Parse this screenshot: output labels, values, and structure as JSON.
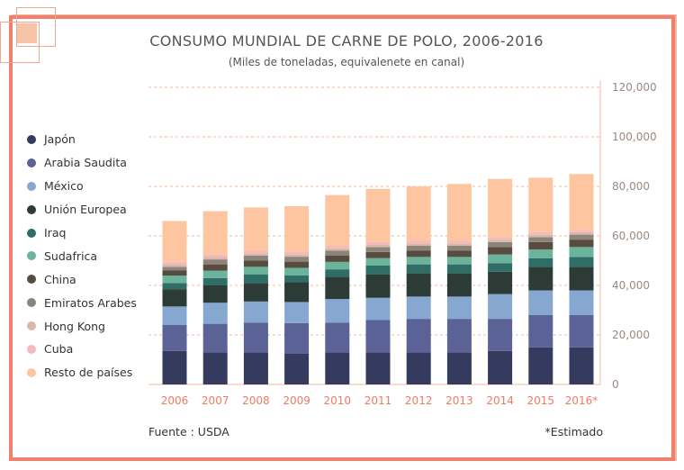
{
  "title": "CONSUMO MUNDIAL DE CARNE DE POLO, 2006-2016",
  "subtitle": "(Miles de toneladas, equivalenete en canal)",
  "footer": {
    "source": "Fuente : USDA",
    "note": "*Estimado"
  },
  "chart_data": {
    "type": "bar",
    "stacked": true,
    "title": "CONSUMO MUNDIAL DE CARNE DE POLO, 2006-2016",
    "subtitle": "(Miles de toneladas, equivalenete en canal)",
    "categories": [
      "2006",
      "2007",
      "2008",
      "2009",
      "2010",
      "2011",
      "2012",
      "2013",
      "2014",
      "2015",
      "2016*"
    ],
    "y_axis": {
      "position": "right",
      "ylim": [
        0,
        120000
      ],
      "ticks": [
        0,
        20000,
        40000,
        60000,
        80000,
        100000,
        120000
      ],
      "tick_labels": [
        "0",
        "20,000",
        "40,000",
        "60,000",
        "80,000",
        "100,000",
        "120,000"
      ]
    },
    "grid": true,
    "legend_position": "left",
    "series": [
      {
        "name": "Japón",
        "color": "#353a5f",
        "values": [
          13500,
          13000,
          13000,
          12500,
          13000,
          13000,
          13000,
          13000,
          13500,
          15000,
          15000
        ]
      },
      {
        "name": "Arabia Saudita",
        "color": "#5a6296",
        "values": [
          10500,
          11500,
          12000,
          12300,
          12000,
          13000,
          13500,
          13500,
          13000,
          13000,
          13000
        ]
      },
      {
        "name": "México",
        "color": "#86a8d0",
        "values": [
          7500,
          8500,
          8500,
          8500,
          9500,
          9000,
          9000,
          9000,
          10000,
          10000,
          10000
        ]
      },
      {
        "name": "Unión Europea",
        "color": "#2d3b36",
        "values": [
          7000,
          7000,
          7500,
          8000,
          9000,
          9500,
          9500,
          9500,
          9000,
          9500,
          9500
        ]
      },
      {
        "name": "Iraq",
        "color": "#2f6e67",
        "values": [
          2500,
          3000,
          3500,
          2800,
          3000,
          3500,
          3500,
          3500,
          3500,
          3500,
          4000
        ]
      },
      {
        "name": "Sudafrica",
        "color": "#6cb39b",
        "values": [
          3000,
          3000,
          3000,
          3000,
          3000,
          3000,
          3000,
          3000,
          3500,
          3500,
          4000
        ]
      },
      {
        "name": "China",
        "color": "#574c3f",
        "values": [
          2000,
          2500,
          2500,
          2500,
          2500,
          2500,
          2500,
          2500,
          3000,
          3000,
          3000
        ]
      },
      {
        "name": "Emiratos Arabes",
        "color": "#8c847a",
        "values": [
          1500,
          2000,
          2000,
          2000,
          2000,
          2000,
          2000,
          2000,
          2000,
          2000,
          2000
        ]
      },
      {
        "name": "Hong Kong",
        "color": "#d9b8a5",
        "values": [
          1000,
          1000,
          1000,
          1000,
          1000,
          1000,
          1000,
          1000,
          1000,
          1000,
          1000
        ]
      },
      {
        "name": "Cuba",
        "color": "#f6b9bc",
        "values": [
          1000,
          1000,
          1000,
          1000,
          1000,
          1000,
          1000,
          1000,
          1000,
          1000,
          1000
        ]
      },
      {
        "name": "Resto de países",
        "color": "#fec6a0",
        "values": [
          16500,
          17500,
          17500,
          18400,
          20500,
          21500,
          22000,
          23000,
          23500,
          22000,
          22500
        ]
      }
    ]
  }
}
